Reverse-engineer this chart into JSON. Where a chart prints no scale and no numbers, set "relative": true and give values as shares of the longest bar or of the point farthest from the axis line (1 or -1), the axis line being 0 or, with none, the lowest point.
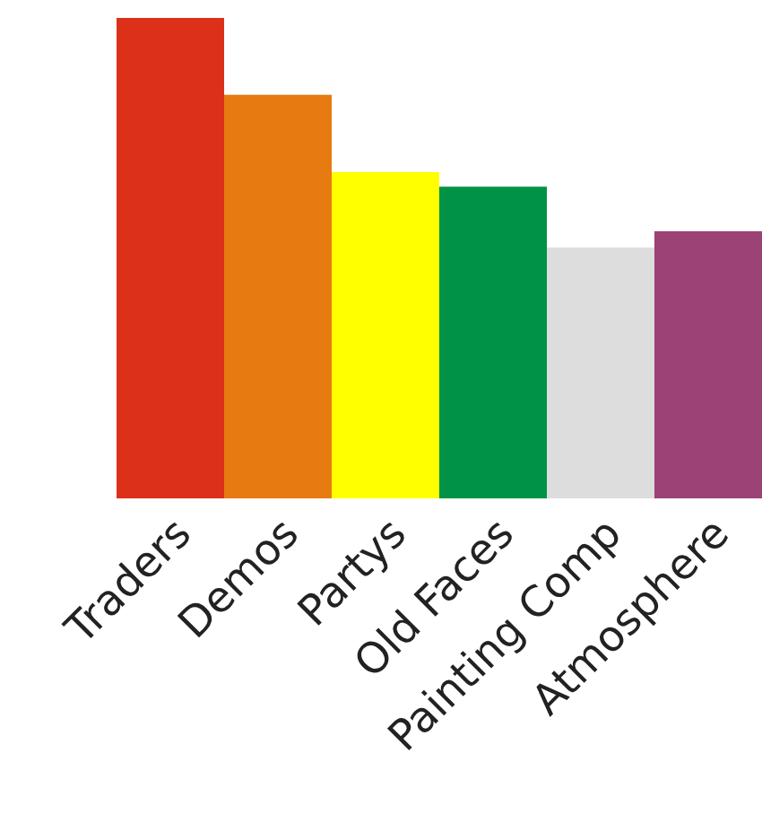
{
  "chart_data": {
    "type": "bar",
    "relative": true,
    "categories": [
      "Traders",
      "Demos",
      "Partys",
      "Old Faces",
      "Painting Comp",
      "Atmosphere"
    ],
    "values": [
      1,
      0.84,
      0.679,
      0.649,
      0.522,
      0.556
    ],
    "colors": [
      "#dc3019",
      "#e87a12",
      "#ffff00",
      "#009245",
      "#dddddd",
      "#9b4277"
    ]
  }
}
